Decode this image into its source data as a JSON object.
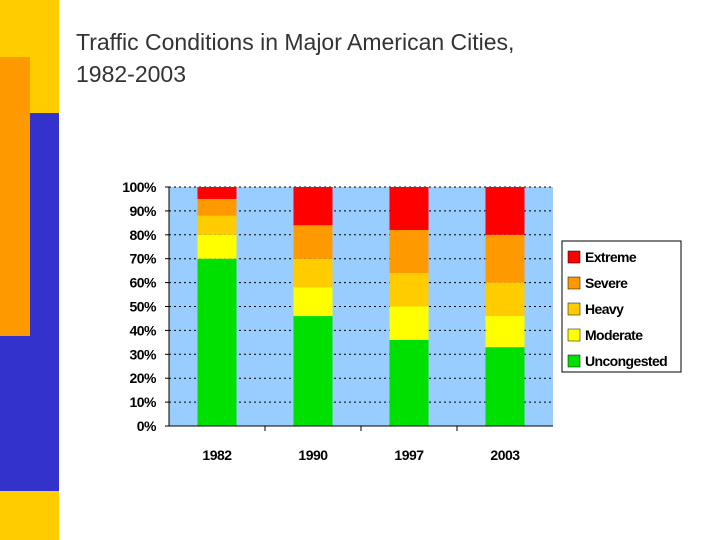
{
  "slide": {
    "title_line1": "Traffic Conditions in Major American Cities,",
    "title_line2": "1982-2003"
  },
  "colors": {
    "plot_bg": "#99CCFF",
    "deco_yellow": "#FFCC00",
    "deco_orange": "#FF9900",
    "deco_blue": "#3333CC"
  },
  "chart_data": {
    "type": "bar",
    "stacked": true,
    "percent": true,
    "title": "",
    "xlabel": "",
    "ylabel": "",
    "ylim": [
      0,
      100
    ],
    "yticks": [
      "0%",
      "10%",
      "20%",
      "30%",
      "40%",
      "50%",
      "60%",
      "70%",
      "80%",
      "90%",
      "100%"
    ],
    "categories": [
      "1982",
      "1990",
      "1997",
      "2003"
    ],
    "series": [
      {
        "name": "Uncongested",
        "color": "#00E000",
        "values": [
          70,
          46,
          36,
          33
        ]
      },
      {
        "name": "Moderate",
        "color": "#FFFF00",
        "values": [
          10,
          12,
          14,
          13
        ]
      },
      {
        "name": "Heavy",
        "color": "#FFCC00",
        "values": [
          8,
          12,
          14,
          14
        ]
      },
      {
        "name": "Severe",
        "color": "#FF9900",
        "values": [
          7,
          14,
          18,
          20
        ]
      },
      {
        "name": "Extreme",
        "color": "#FF0000",
        "values": [
          5,
          16,
          18,
          20
        ]
      }
    ],
    "legend": {
      "position": "right",
      "order": [
        "Extreme",
        "Severe",
        "Heavy",
        "Moderate",
        "Uncongested"
      ]
    },
    "grid": true
  }
}
